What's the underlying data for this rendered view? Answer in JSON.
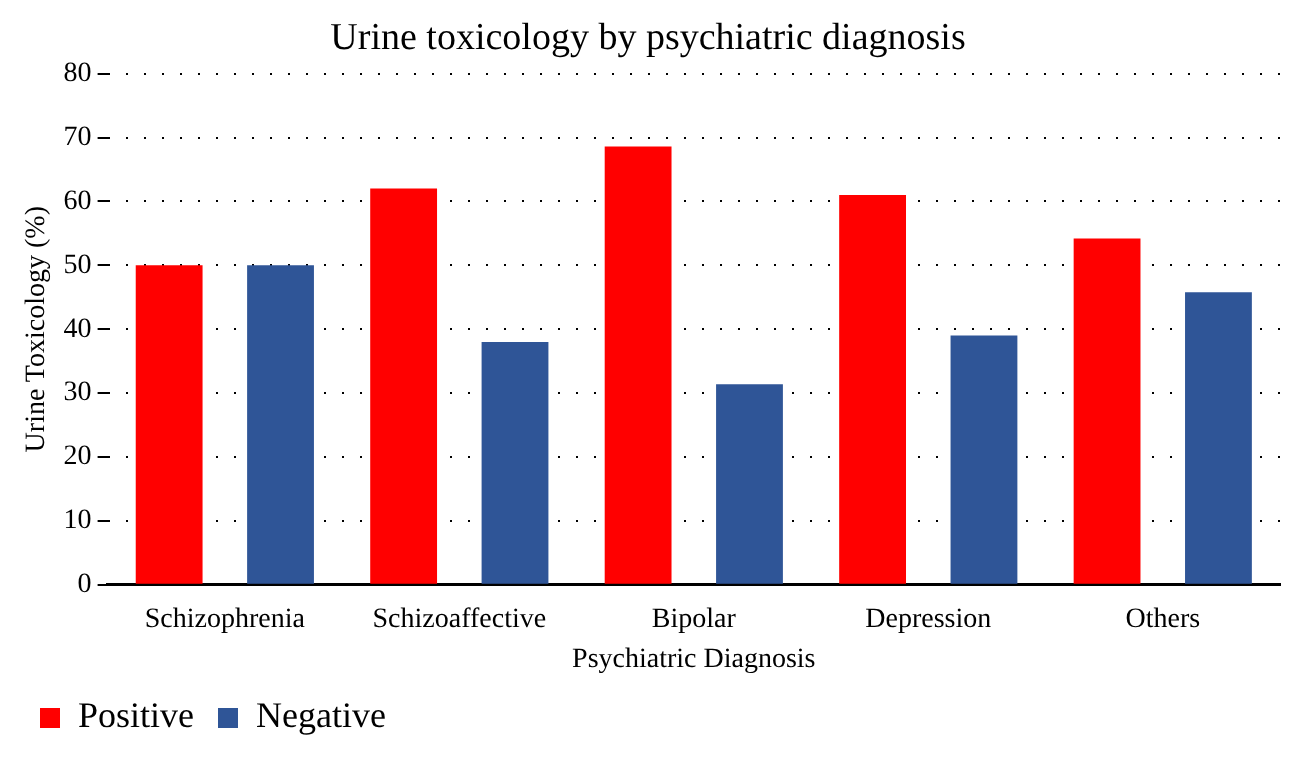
{
  "chart_data": {
    "type": "bar",
    "title": "Urine toxicology by psychiatric diagnosis",
    "xlabel": "Psychiatric Diagnosis",
    "ylabel": "Urine Toxicology (%)",
    "categories": [
      "Schizophrenia",
      "Schizoaffective",
      "Bipolar",
      "Depression",
      "Others"
    ],
    "series": [
      {
        "name": "Positive",
        "color": "#ff0000",
        "values": [
          50,
          62,
          68.6,
          61,
          54.2
        ]
      },
      {
        "name": "Negative",
        "color": "#2f5597",
        "values": [
          50,
          38,
          31.4,
          39,
          45.8
        ]
      }
    ],
    "ylim": [
      0,
      80
    ],
    "yticks": [
      0,
      10,
      20,
      30,
      40,
      50,
      60,
      70,
      80
    ],
    "grid": "y",
    "legend": "bottom left"
  }
}
